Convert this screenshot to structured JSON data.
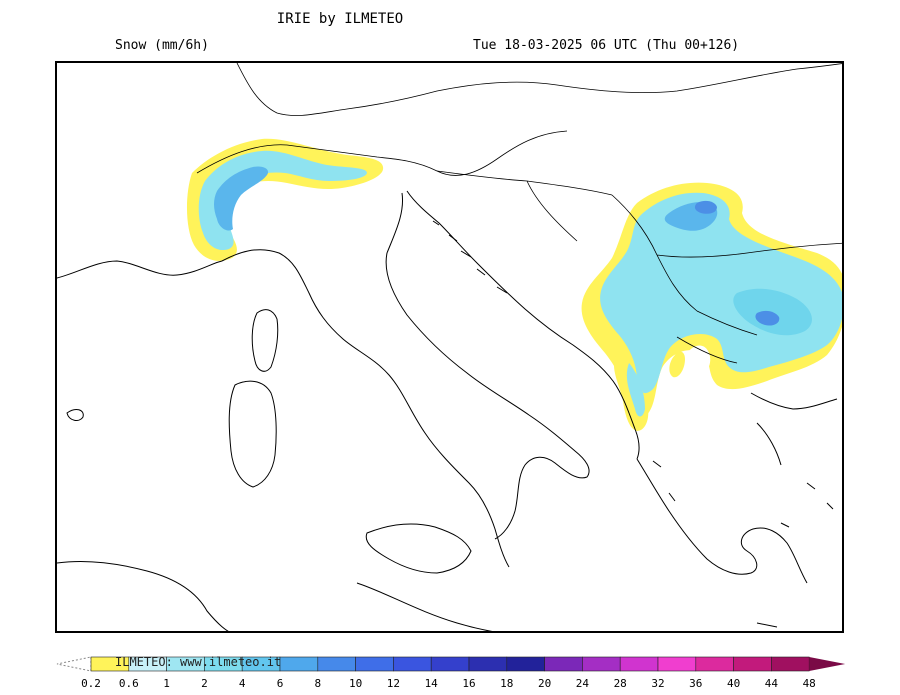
{
  "header": {
    "title": "IRIE by ILMETEO",
    "variable": "Snow (mm/6h)",
    "run": "Tue 18-03-2025 06 UTC (Thu 00+126)"
  },
  "map": {
    "region": "Italy and Balkans",
    "coast_color": "#000000",
    "snow_colors": {
      "0.2": "#fff35a",
      "0.6": "#c8f0f8",
      "1": "#8fe3f0",
      "2": "#6fd5ec",
      "4": "#5ab6ec",
      "6": "#4c8fe6"
    }
  },
  "legend": {
    "watermark": "ILMETEO: www.ilmeteo.it",
    "ticks": [
      "0.2",
      "0.6",
      "1",
      "2",
      "4",
      "6",
      "8",
      "10",
      "12",
      "14",
      "16",
      "18",
      "20",
      "24",
      "28",
      "32",
      "36",
      "40",
      "44",
      "48"
    ],
    "colors": [
      "#fff35a",
      "#c8f0f8",
      "#9fe6f2",
      "#7ddbee",
      "#62c6ee",
      "#4fa8ec",
      "#4689ea",
      "#3f6ee8",
      "#3a55e0",
      "#3440cc",
      "#2c2fb0",
      "#22229a",
      "#7b28b8",
      "#a42ec4",
      "#d034cf",
      "#f03ecf",
      "#dc2a9e",
      "#c21a7c",
      "#a01060",
      "#7a0a46"
    ]
  }
}
